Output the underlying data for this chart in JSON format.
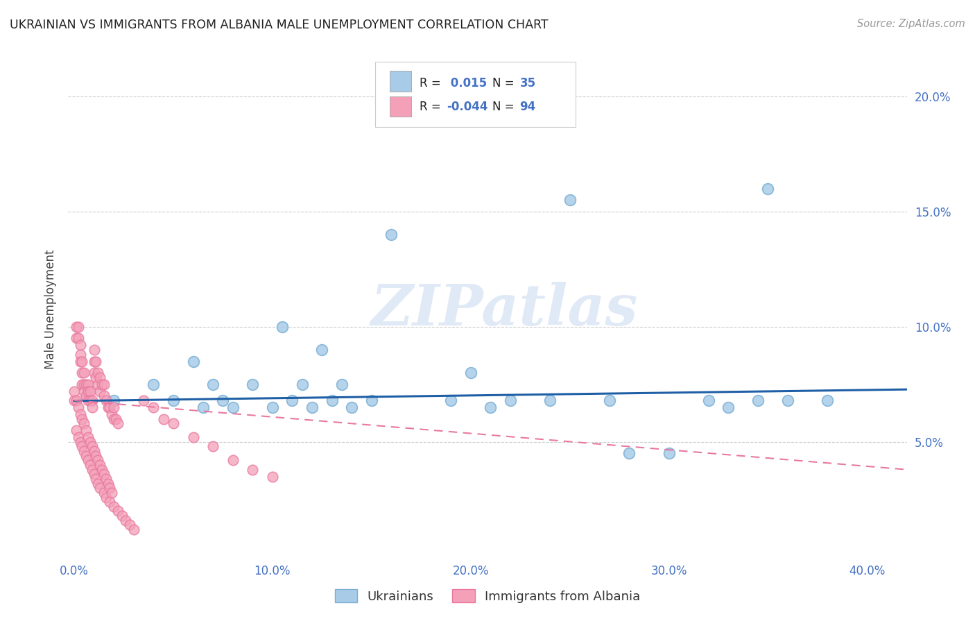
{
  "title": "UKRAINIAN VS IMMIGRANTS FROM ALBANIA MALE UNEMPLOYMENT CORRELATION CHART",
  "source": "Source: ZipAtlas.com",
  "ylabel": "Male Unemployment",
  "ylim": [
    0.0,
    0.215
  ],
  "xlim": [
    -0.003,
    0.42
  ],
  "watermark": "ZIPatlas",
  "blue_color": "#a8cce8",
  "blue_edge_color": "#7aafd4",
  "blue_line_color": "#1f5fa6",
  "pink_color": "#f4a0b8",
  "pink_edge_color": "#e878a0",
  "pink_line_color": "#e878a0",
  "grid_color": "#cccccc",
  "bg_color": "#ffffff",
  "tick_color": "#4472c4",
  "title_color": "#222222",
  "source_color": "#999999",
  "ylabel_color": "#444444",
  "blue_x": [
    0.02,
    0.04,
    0.05,
    0.06,
    0.065,
    0.07,
    0.075,
    0.08,
    0.09,
    0.1,
    0.105,
    0.11,
    0.115,
    0.12,
    0.125,
    0.13,
    0.135,
    0.14,
    0.15,
    0.16,
    0.19,
    0.2,
    0.21,
    0.22,
    0.24,
    0.25,
    0.27,
    0.28,
    0.3,
    0.32,
    0.33,
    0.345,
    0.35,
    0.36,
    0.38
  ],
  "blue_y": [
    0.068,
    0.075,
    0.068,
    0.085,
    0.065,
    0.075,
    0.068,
    0.065,
    0.075,
    0.065,
    0.1,
    0.068,
    0.075,
    0.065,
    0.09,
    0.068,
    0.075,
    0.065,
    0.068,
    0.14,
    0.068,
    0.08,
    0.065,
    0.068,
    0.068,
    0.155,
    0.068,
    0.045,
    0.045,
    0.068,
    0.065,
    0.068,
    0.16,
    0.068,
    0.068
  ],
  "pink_x": [
    0.0,
    0.001,
    0.001,
    0.002,
    0.002,
    0.003,
    0.003,
    0.003,
    0.004,
    0.004,
    0.004,
    0.005,
    0.005,
    0.005,
    0.006,
    0.006,
    0.007,
    0.007,
    0.007,
    0.008,
    0.008,
    0.009,
    0.009,
    0.01,
    0.01,
    0.01,
    0.011,
    0.011,
    0.012,
    0.012,
    0.013,
    0.013,
    0.014,
    0.015,
    0.015,
    0.016,
    0.017,
    0.018,
    0.019,
    0.02,
    0.02,
    0.021,
    0.022,
    0.001,
    0.002,
    0.003,
    0.004,
    0.005,
    0.006,
    0.007,
    0.008,
    0.009,
    0.01,
    0.011,
    0.012,
    0.013,
    0.015,
    0.016,
    0.018,
    0.02,
    0.022,
    0.024,
    0.026,
    0.028,
    0.03,
    0.0,
    0.001,
    0.002,
    0.003,
    0.004,
    0.005,
    0.006,
    0.007,
    0.008,
    0.009,
    0.01,
    0.011,
    0.012,
    0.013,
    0.014,
    0.015,
    0.016,
    0.017,
    0.018,
    0.019,
    0.035,
    0.04,
    0.045,
    0.05,
    0.06,
    0.07,
    0.08,
    0.09,
    0.1
  ],
  "pink_y": [
    0.068,
    0.1,
    0.095,
    0.1,
    0.095,
    0.092,
    0.088,
    0.085,
    0.085,
    0.08,
    0.075,
    0.08,
    0.075,
    0.072,
    0.075,
    0.07,
    0.075,
    0.072,
    0.068,
    0.072,
    0.068,
    0.068,
    0.065,
    0.09,
    0.085,
    0.08,
    0.085,
    0.078,
    0.08,
    0.075,
    0.078,
    0.072,
    0.075,
    0.075,
    0.07,
    0.068,
    0.065,
    0.065,
    0.062,
    0.065,
    0.06,
    0.06,
    0.058,
    0.055,
    0.052,
    0.05,
    0.048,
    0.046,
    0.044,
    0.042,
    0.04,
    0.038,
    0.036,
    0.034,
    0.032,
    0.03,
    0.028,
    0.026,
    0.024,
    0.022,
    0.02,
    0.018,
    0.016,
    0.014,
    0.012,
    0.072,
    0.068,
    0.065,
    0.062,
    0.06,
    0.058,
    0.055,
    0.052,
    0.05,
    0.048,
    0.046,
    0.044,
    0.042,
    0.04,
    0.038,
    0.036,
    0.034,
    0.032,
    0.03,
    0.028,
    0.068,
    0.065,
    0.06,
    0.058,
    0.052,
    0.048,
    0.042,
    0.038,
    0.035
  ],
  "blue_trend_x": [
    0.0,
    0.42
  ],
  "blue_trend_y": [
    0.0678,
    0.0728
  ],
  "pink_trend_x": [
    0.0,
    0.42
  ],
  "pink_trend_y": [
    0.068,
    0.038
  ],
  "x_ticks": [
    0.0,
    0.1,
    0.2,
    0.3,
    0.4
  ],
  "x_tick_labels": [
    "0.0%",
    "10.0%",
    "20.0%",
    "30.0%",
    "40.0%"
  ],
  "y_ticks": [
    0.05,
    0.1,
    0.15,
    0.2
  ],
  "y_tick_labels": [
    "5.0%",
    "10.0%",
    "15.0%",
    "20.0%"
  ]
}
